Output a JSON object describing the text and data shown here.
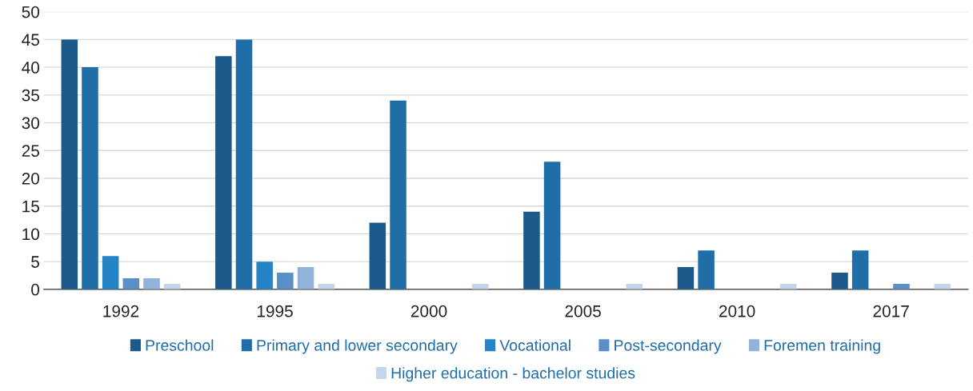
{
  "chart_data": {
    "type": "bar",
    "categories": [
      "1992",
      "1995",
      "2000",
      "2005",
      "2010",
      "2017"
    ],
    "series": [
      {
        "name": "Preschool",
        "color": "#1b5a8a",
        "values": [
          45,
          42,
          12,
          14,
          4,
          3
        ]
      },
      {
        "name": "Primary and lower secondary",
        "color": "#1f6ea8",
        "values": [
          40,
          45,
          34,
          23,
          7,
          7
        ]
      },
      {
        "name": "Vocational",
        "color": "#2684c6",
        "values": [
          6,
          5,
          0,
          0,
          0,
          0
        ]
      },
      {
        "name": "Post-secondary",
        "color": "#5b8fc8",
        "values": [
          2,
          3,
          0,
          0,
          0,
          1
        ]
      },
      {
        "name": "Foremen training",
        "color": "#93b2da",
        "values": [
          2,
          4,
          0,
          0,
          0,
          0
        ]
      },
      {
        "name": "Higher education - bachelor studies",
        "color": "#c5d6ec",
        "values": [
          1,
          1,
          1,
          1,
          1,
          1
        ]
      }
    ],
    "ylim": [
      0,
      50
    ],
    "yticks": [
      0,
      5,
      10,
      15,
      20,
      25,
      30,
      35,
      40,
      45,
      50
    ],
    "grid": "y",
    "legend": "bottom"
  }
}
